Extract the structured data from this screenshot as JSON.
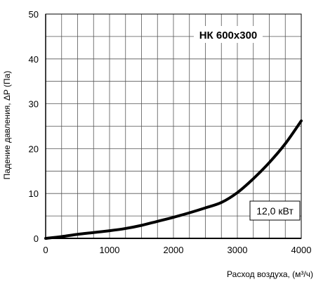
{
  "chart_data": {
    "type": "line",
    "title": "НК 600х300",
    "annotation": "12,0 кВт",
    "xlabel": "Расход воздуха, (м³/ч)",
    "ylabel": "Падение давления, ΔP (Па)",
    "xlim": [
      0,
      4000
    ],
    "ylim": [
      0,
      50
    ],
    "x_ticks": [
      0,
      1000,
      2000,
      3000,
      4000
    ],
    "y_ticks": [
      0,
      10,
      20,
      30,
      40,
      50
    ],
    "x_tick_labels": [
      "0",
      "1000",
      "2000",
      "3000",
      "4000"
    ],
    "y_tick_labels": [
      "0",
      "10",
      "20",
      "30",
      "40",
      "50"
    ],
    "grid": true,
    "series": [
      {
        "color": "#000000",
        "x": [
          0,
          250,
          500,
          750,
          1000,
          1250,
          1500,
          1750,
          2000,
          2250,
          2500,
          2750,
          3000,
          3250,
          3500,
          3750,
          4000
        ],
        "y": [
          0.0,
          0.4,
          0.9,
          1.3,
          1.7,
          2.2,
          2.9,
          3.8,
          4.7,
          5.7,
          6.8,
          8.0,
          10.2,
          13.3,
          16.9,
          21.1,
          26.2
        ]
      }
    ]
  },
  "colors": {
    "grid": "#555555",
    "axis": "#000000",
    "text": "#000000"
  }
}
